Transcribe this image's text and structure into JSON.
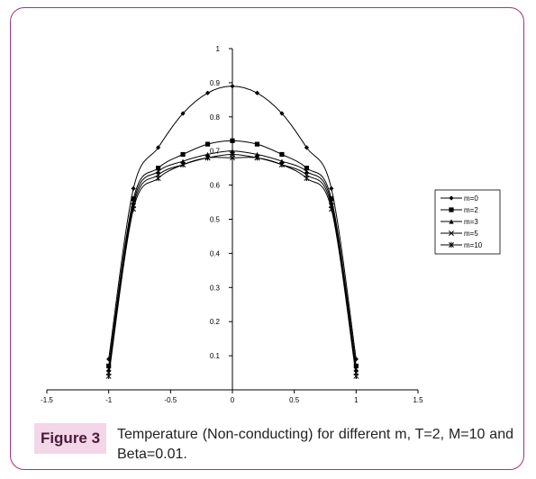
{
  "caption": {
    "label": "Figure 3",
    "text": "Temperature (Non-conducting) for different m, T=2, M=10 and Beta=0.01."
  },
  "colors": {
    "frame": "#a0367e",
    "label_bg": "#f3d6e8"
  },
  "chart_data": {
    "type": "line",
    "title": "",
    "xlabel": "",
    "ylabel": "",
    "xlim": [
      -1.5,
      1.5
    ],
    "ylim": [
      0,
      1
    ],
    "x_ticks": [
      "-1.5",
      "-1",
      "-0.5",
      "0",
      "0.5",
      "1",
      "1.5"
    ],
    "y_ticks": [
      "0.1",
      "0.2",
      "0.3",
      "0.4",
      "0.5",
      "0.6",
      "0.7",
      "0.8",
      "0.9",
      "1"
    ],
    "grid": false,
    "legend_position": "right",
    "x": [
      -1,
      -0.8,
      -0.6,
      -0.4,
      -0.2,
      0,
      0.2,
      0.4,
      0.6,
      0.8,
      1
    ],
    "series": [
      {
        "name": "m=0",
        "marker": "diamond",
        "values": [
          0.09,
          0.59,
          0.71,
          0.81,
          0.87,
          0.89,
          0.87,
          0.81,
          0.71,
          0.59,
          0.09
        ]
      },
      {
        "name": "m=2",
        "marker": "square",
        "values": [
          0.07,
          0.56,
          0.65,
          0.69,
          0.72,
          0.73,
          0.72,
          0.69,
          0.65,
          0.56,
          0.07
        ]
      },
      {
        "name": "m=3",
        "marker": "triangle",
        "values": [
          0.06,
          0.55,
          0.64,
          0.67,
          0.69,
          0.7,
          0.69,
          0.67,
          0.64,
          0.55,
          0.06
        ]
      },
      {
        "name": "m=5",
        "marker": "x",
        "values": [
          0.05,
          0.54,
          0.63,
          0.66,
          0.68,
          0.69,
          0.68,
          0.66,
          0.63,
          0.54,
          0.05
        ]
      },
      {
        "name": "m=10",
        "marker": "star",
        "values": [
          0.04,
          0.53,
          0.62,
          0.66,
          0.68,
          0.68,
          0.68,
          0.66,
          0.62,
          0.53,
          0.04
        ]
      }
    ]
  }
}
